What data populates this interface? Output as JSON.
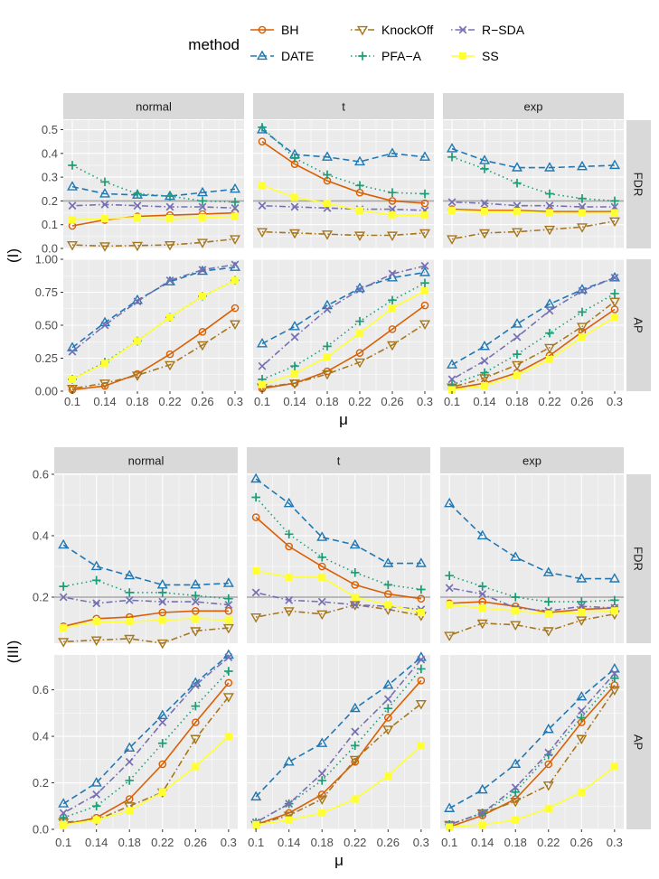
{
  "legend": {
    "title": "method",
    "items": [
      {
        "label": "BH",
        "color": "#D95F02",
        "shape": "circle",
        "dash": "solid"
      },
      {
        "label": "DATE",
        "color": "#1F78B4",
        "shape": "triangle",
        "dash": "dashed"
      },
      {
        "label": "KnockOff",
        "color": "#A6761D",
        "shape": "down-triangle",
        "dash": "dotdash"
      },
      {
        "label": "PFA−A",
        "color": "#1B9E77",
        "shape": "plus",
        "dash": "dotted"
      },
      {
        "label": "R−SDA",
        "color": "#7570B3",
        "shape": "cross",
        "dash": "dotdash"
      },
      {
        "label": "SS",
        "color": "#FFFF33",
        "shape": "square",
        "dash": "solid"
      }
    ]
  },
  "column_labels": [
    "normal",
    "t",
    "exp"
  ],
  "row_labels": [
    "FDR",
    "AP"
  ],
  "fdr_reference_line": 0.2,
  "chart_data": [
    {
      "type": "line",
      "panel_group": "(I)",
      "x_label": "μ",
      "x": [
        "0.1",
        "0.14",
        "0.18",
        "0.22",
        "0.26",
        "0.3"
      ],
      "fdr_ylim": [
        0,
        0.54
      ],
      "fdr_ticks": [
        "0.0",
        "0.1",
        "0.2",
        "0.3",
        "0.4",
        "0.5"
      ],
      "ap_ylim": [
        0,
        1.0
      ],
      "ap_ticks": [
        "0.00",
        "0.25",
        "0.50",
        "0.75",
        "1.00"
      ],
      "panels": {
        "normal": {
          "FDR": {
            "BH": [
              0.095,
              0.12,
              0.135,
              0.14,
              0.145,
              0.15
            ],
            "DATE": [
              0.26,
              0.23,
              0.225,
              0.22,
              0.235,
              0.25
            ],
            "KnockOff": [
              0.015,
              0.01,
              0.012,
              0.015,
              0.025,
              0.04
            ],
            "PFA−A": [
              0.35,
              0.28,
              0.23,
              0.22,
              0.2,
              0.195
            ],
            "R−SDA": [
              0.18,
              0.185,
              0.18,
              0.175,
              0.175,
              0.17
            ],
            "SS": [
              0.12,
              0.125,
              0.13,
              0.125,
              0.13,
              0.135
            ]
          },
          "AP": {
            "BH": [
              0.01,
              0.04,
              0.13,
              0.28,
              0.45,
              0.63
            ],
            "DATE": [
              0.33,
              0.52,
              0.69,
              0.83,
              0.91,
              0.94
            ],
            "KnockOff": [
              0.02,
              0.06,
              0.12,
              0.2,
              0.35,
              0.51
            ],
            "PFA−A": [
              0.09,
              0.22,
              0.38,
              0.56,
              0.72,
              0.84
            ],
            "R−SDA": [
              0.3,
              0.5,
              0.68,
              0.84,
              0.92,
              0.96
            ],
            "SS": [
              0.09,
              0.21,
              0.38,
              0.56,
              0.72,
              0.84
            ]
          }
        },
        "t": {
          "FDR": {
            "BH": [
              0.45,
              0.355,
              0.285,
              0.235,
              0.2,
              0.19
            ],
            "DATE": [
              0.5,
              0.395,
              0.385,
              0.365,
              0.4,
              0.385
            ],
            "KnockOff": [
              0.07,
              0.065,
              0.06,
              0.055,
              0.055,
              0.065
            ],
            "PFA−A": [
              0.51,
              0.38,
              0.31,
              0.265,
              0.235,
              0.23
            ],
            "R−SDA": [
              0.18,
              0.175,
              0.17,
              0.165,
              0.165,
              0.16
            ],
            "SS": [
              0.265,
              0.215,
              0.19,
              0.16,
              0.14,
              0.14
            ]
          },
          "AP": {
            "BH": [
              0.02,
              0.06,
              0.15,
              0.29,
              0.47,
              0.65
            ],
            "DATE": [
              0.36,
              0.49,
              0.65,
              0.78,
              0.86,
              0.9
            ],
            "KnockOff": [
              0.03,
              0.06,
              0.13,
              0.22,
              0.35,
              0.51
            ],
            "PFA−A": [
              0.09,
              0.19,
              0.34,
              0.53,
              0.69,
              0.82
            ],
            "R−SDA": [
              0.19,
              0.41,
              0.62,
              0.77,
              0.89,
              0.95
            ],
            "SS": [
              0.05,
              0.13,
              0.26,
              0.44,
              0.63,
              0.76
            ]
          }
        },
        "exp": {
          "FDR": {
            "BH": [
              0.165,
              0.16,
              0.16,
              0.155,
              0.155,
              0.155
            ],
            "DATE": [
              0.42,
              0.37,
              0.34,
              0.34,
              0.345,
              0.35
            ],
            "KnockOff": [
              0.04,
              0.065,
              0.07,
              0.08,
              0.09,
              0.115
            ],
            "PFA−A": [
              0.385,
              0.335,
              0.275,
              0.23,
              0.21,
              0.2
            ],
            "R−SDA": [
              0.195,
              0.19,
              0.18,
              0.18,
              0.175,
              0.175
            ],
            "SS": [
              0.16,
              0.155,
              0.155,
              0.15,
              0.15,
              0.15
            ]
          },
          "AP": {
            "BH": [
              0.02,
              0.06,
              0.14,
              0.27,
              0.45,
              0.62
            ],
            "DATE": [
              0.2,
              0.34,
              0.51,
              0.66,
              0.77,
              0.86
            ],
            "KnockOff": [
              0.03,
              0.1,
              0.2,
              0.33,
              0.49,
              0.68
            ],
            "PFA−A": [
              0.05,
              0.14,
              0.28,
              0.44,
              0.6,
              0.74
            ],
            "R−SDA": [
              0.09,
              0.23,
              0.41,
              0.61,
              0.76,
              0.86
            ],
            "SS": [
              0.01,
              0.04,
              0.12,
              0.24,
              0.41,
              0.56
            ]
          }
        }
      }
    },
    {
      "type": "line",
      "panel_group": "(III)",
      "x_label": "μ",
      "x": [
        "0.1",
        "0.14",
        "0.18",
        "0.22",
        "0.26",
        "0.3"
      ],
      "fdr_ylim": [
        0.05,
        0.6
      ],
      "fdr_ticks": [
        "0.2",
        "0.4",
        "0.6"
      ],
      "ap_ylim": [
        0,
        0.75
      ],
      "ap_ticks": [
        "0.0",
        "0.2",
        "0.4",
        "0.6"
      ],
      "panels": {
        "normal": {
          "FDR": {
            "BH": [
              0.105,
              0.13,
              0.135,
              0.15,
              0.155,
              0.155
            ],
            "DATE": [
              0.37,
              0.3,
              0.27,
              0.24,
              0.24,
              0.245
            ],
            "KnockOff": [
              0.055,
              0.06,
              0.065,
              0.05,
              0.09,
              0.1
            ],
            "PFA−A": [
              0.235,
              0.255,
              0.215,
              0.215,
              0.205,
              0.195
            ],
            "R−SDA": [
              0.2,
              0.18,
              0.19,
              0.185,
              0.185,
              0.175
            ],
            "SS": [
              0.1,
              0.12,
              0.12,
              0.125,
              0.13,
              0.125
            ]
          },
          "AP": {
            "BH": [
              0.02,
              0.05,
              0.13,
              0.28,
              0.46,
              0.63
            ],
            "DATE": [
              0.11,
              0.2,
              0.35,
              0.49,
              0.63,
              0.75
            ],
            "KnockOff": [
              0.03,
              0.04,
              0.1,
              0.16,
              0.39,
              0.57
            ],
            "PFA−A": [
              0.05,
              0.1,
              0.21,
              0.37,
              0.53,
              0.68
            ],
            "R−SDA": [
              0.07,
              0.15,
              0.29,
              0.46,
              0.62,
              0.74
            ],
            "SS": [
              0.02,
              0.04,
              0.08,
              0.16,
              0.27,
              0.4
            ]
          }
        },
        "t": {
          "FDR": {
            "BH": [
              0.46,
              0.365,
              0.3,
              0.24,
              0.21,
              0.195
            ],
            "DATE": [
              0.585,
              0.505,
              0.395,
              0.37,
              0.31,
              0.31
            ],
            "KnockOff": [
              0.135,
              0.155,
              0.145,
              0.175,
              0.16,
              0.14
            ],
            "PFA−A": [
              0.525,
              0.405,
              0.33,
              0.28,
              0.24,
              0.225
            ],
            "R−SDA": [
              0.215,
              0.19,
              0.185,
              0.175,
              0.17,
              0.16
            ],
            "SS": [
              0.285,
              0.265,
              0.265,
              0.2,
              0.175,
              0.15
            ]
          },
          "AP": {
            "BH": [
              0.02,
              0.07,
              0.15,
              0.29,
              0.48,
              0.64
            ],
            "DATE": [
              0.14,
              0.29,
              0.37,
              0.52,
              0.62,
              0.74
            ],
            "KnockOff": [
              0.02,
              0.06,
              0.13,
              0.3,
              0.43,
              0.54
            ],
            "PFA−A": [
              0.03,
              0.11,
              0.21,
              0.36,
              0.52,
              0.69
            ],
            "R−SDA": [
              0.03,
              0.11,
              0.24,
              0.42,
              0.56,
              0.73
            ],
            "SS": [
              0.02,
              0.04,
              0.07,
              0.13,
              0.23,
              0.36
            ]
          }
        },
        "exp": {
          "FDR": {
            "BH": [
              0.18,
              0.185,
              0.17,
              0.15,
              0.16,
              0.165
            ],
            "DATE": [
              0.505,
              0.4,
              0.33,
              0.28,
              0.26,
              0.26
            ],
            "KnockOff": [
              0.075,
              0.115,
              0.11,
              0.09,
              0.125,
              0.145
            ],
            "PFA−A": [
              0.27,
              0.235,
              0.2,
              0.185,
              0.185,
              0.19
            ],
            "R−SDA": [
              0.23,
              0.21,
              0.165,
              0.155,
              0.17,
              0.165
            ],
            "SS": [
              0.175,
              0.165,
              0.155,
              0.145,
              0.15,
              0.155
            ]
          },
          "AP": {
            "BH": [
              0.01,
              0.06,
              0.13,
              0.28,
              0.46,
              0.62
            ],
            "DATE": [
              0.09,
              0.17,
              0.28,
              0.43,
              0.57,
              0.69
            ],
            "KnockOff": [
              0.02,
              0.07,
              0.12,
              0.19,
              0.39,
              0.6
            ],
            "PFA−A": [
              0.02,
              0.07,
              0.16,
              0.32,
              0.48,
              0.65
            ],
            "R−SDA": [
              0.02,
              0.07,
              0.18,
              0.33,
              0.51,
              0.67
            ],
            "SS": [
              0.01,
              0.02,
              0.04,
              0.09,
              0.16,
              0.27
            ]
          }
        }
      }
    }
  ]
}
